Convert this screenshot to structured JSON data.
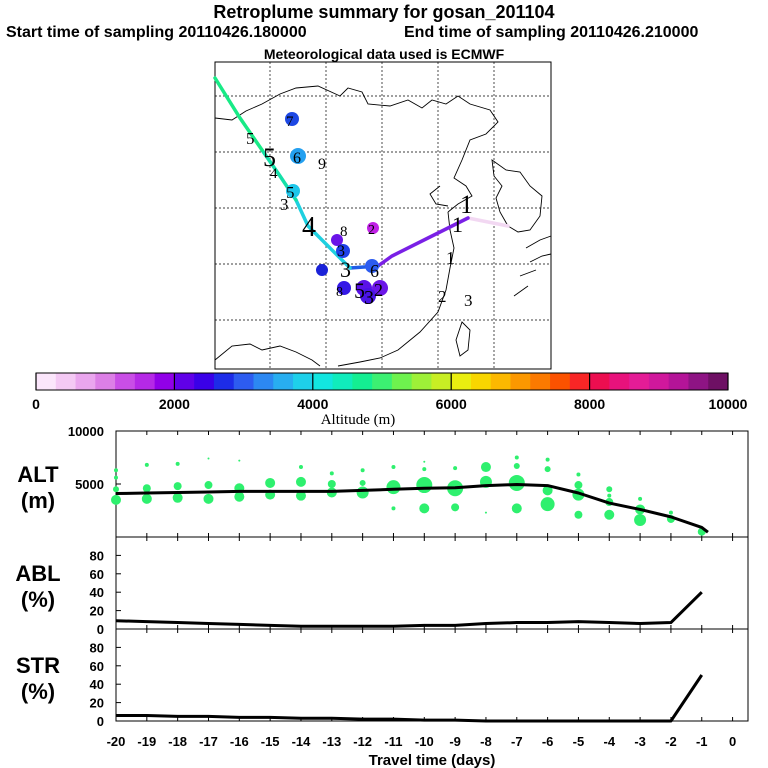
{
  "header": {
    "title": "Retroplume summary for gosan_201104",
    "start_label": "Start time of sampling 20110426.180000",
    "end_label": "End time of sampling 20110426.210000",
    "met_label": "Meteorological data used is ECMWF"
  },
  "colorbar": {
    "ticks": [
      "0",
      "2000",
      "4000",
      "6000",
      "8000",
      "10000"
    ],
    "label": "Altitude  (m)",
    "colors": [
      "#fbe6fb",
      "#f4c9f4",
      "#eaa6ee",
      "#dc7fe6",
      "#c94ee6",
      "#b529e6",
      "#9100e8",
      "#6000e8",
      "#3a00e8",
      "#1d2ce8",
      "#2d5cf0",
      "#2c88f2",
      "#28aef0",
      "#1ed0ea",
      "#12e6e0",
      "#10ecbc",
      "#14ee92",
      "#3cf072",
      "#6ef24e",
      "#9ef038",
      "#c8ee24",
      "#eaee10",
      "#f8d600",
      "#fcb800",
      "#fc9800",
      "#fc7a00",
      "#fc5200",
      "#f82626",
      "#ec0e50",
      "#e8127c",
      "#e41c96",
      "#d0189c",
      "#b41498",
      "#8e1484",
      "#6e1064"
    ]
  },
  "map": {
    "trajectory_colors": {
      "segment1": "#f2d8f2",
      "segment2": "#7a20e6",
      "segment3": "#1f5ce8",
      "segment4": "#1ed0e0",
      "segment5": "#14e0a8",
      "segment6": "#18ea86"
    },
    "labels": [
      "1",
      "1",
      "1",
      "2",
      "3",
      "2",
      "3",
      "4",
      "5",
      "6",
      "7",
      "8",
      "9",
      "3",
      "5",
      "5",
      "4",
      "3",
      "6",
      "2",
      "3",
      "5",
      "8"
    ]
  },
  "chart_data": [
    {
      "type": "line",
      "panel": "ALT",
      "ylabel_line1": "ALT",
      "ylabel_line2": "(m)",
      "ylim": [
        0,
        10000
      ],
      "yticks": [
        "10000",
        "5000"
      ],
      "xlabel": "Travel time (days)",
      "x": [
        -20,
        -19,
        -18,
        -17,
        -16,
        -15,
        -14,
        -13,
        -12,
        -11,
        -10,
        -9,
        -8,
        -7,
        -6,
        -5,
        -4,
        -3,
        -2,
        -1,
        -0.8
      ],
      "y": [
        4100,
        4150,
        4200,
        4250,
        4300,
        4300,
        4300,
        4300,
        4400,
        4500,
        4600,
        4650,
        4850,
        4950,
        4850,
        4150,
        3200,
        2600,
        1900,
        900,
        450
      ],
      "scatter": [
        {
          "x": -20,
          "y": 3500,
          "r": 5
        },
        {
          "x": -20,
          "y": 4500,
          "r": 3
        },
        {
          "x": -20,
          "y": 5600,
          "r": 2
        },
        {
          "x": -20,
          "y": 6300,
          "r": 2
        },
        {
          "x": -19,
          "y": 3600,
          "r": 5
        },
        {
          "x": -19,
          "y": 4600,
          "r": 4
        },
        {
          "x": -19,
          "y": 6800,
          "r": 2
        },
        {
          "x": -18,
          "y": 3700,
          "r": 5
        },
        {
          "x": -18,
          "y": 4800,
          "r": 4
        },
        {
          "x": -18,
          "y": 6900,
          "r": 2
        },
        {
          "x": -17,
          "y": 3600,
          "r": 5
        },
        {
          "x": -17,
          "y": 4900,
          "r": 4
        },
        {
          "x": -17,
          "y": 7400,
          "r": 1
        },
        {
          "x": -16,
          "y": 3800,
          "r": 5
        },
        {
          "x": -16,
          "y": 4600,
          "r": 5
        },
        {
          "x": -16,
          "y": 7200,
          "r": 1
        },
        {
          "x": -15,
          "y": 4000,
          "r": 5
        },
        {
          "x": -15,
          "y": 5100,
          "r": 5
        },
        {
          "x": -14,
          "y": 3900,
          "r": 5
        },
        {
          "x": -14,
          "y": 5200,
          "r": 5
        },
        {
          "x": -14,
          "y": 6600,
          "r": 2
        },
        {
          "x": -13,
          "y": 4200,
          "r": 5
        },
        {
          "x": -13,
          "y": 5000,
          "r": 4
        },
        {
          "x": -13,
          "y": 6000,
          "r": 2
        },
        {
          "x": -12,
          "y": 4200,
          "r": 6
        },
        {
          "x": -12,
          "y": 5100,
          "r": 3
        },
        {
          "x": -12,
          "y": 6300,
          "r": 2
        },
        {
          "x": -11,
          "y": 4700,
          "r": 7
        },
        {
          "x": -11,
          "y": 2700,
          "r": 2
        },
        {
          "x": -11,
          "y": 6600,
          "r": 2
        },
        {
          "x": -10,
          "y": 4900,
          "r": 8
        },
        {
          "x": -10,
          "y": 2700,
          "r": 5
        },
        {
          "x": -10,
          "y": 6400,
          "r": 2
        },
        {
          "x": -10,
          "y": 7100,
          "r": 1
        },
        {
          "x": -9,
          "y": 4600,
          "r": 8
        },
        {
          "x": -9,
          "y": 2800,
          "r": 4
        },
        {
          "x": -9,
          "y": 6500,
          "r": 2
        },
        {
          "x": -8,
          "y": 5200,
          "r": 6
        },
        {
          "x": -8,
          "y": 6600,
          "r": 5
        },
        {
          "x": -8,
          "y": 2300,
          "r": 1
        },
        {
          "x": -7,
          "y": 5100,
          "r": 8
        },
        {
          "x": -7,
          "y": 2700,
          "r": 5
        },
        {
          "x": -7,
          "y": 6700,
          "r": 3
        },
        {
          "x": -7,
          "y": 7500,
          "r": 2
        },
        {
          "x": -6,
          "y": 3100,
          "r": 7
        },
        {
          "x": -6,
          "y": 4400,
          "r": 5
        },
        {
          "x": -6,
          "y": 6400,
          "r": 3
        },
        {
          "x": -6,
          "y": 7300,
          "r": 2
        },
        {
          "x": -5,
          "y": 4000,
          "r": 6
        },
        {
          "x": -5,
          "y": 2100,
          "r": 4
        },
        {
          "x": -5,
          "y": 4900,
          "r": 4
        },
        {
          "x": -5,
          "y": 5900,
          "r": 2
        },
        {
          "x": -4,
          "y": 2100,
          "r": 5
        },
        {
          "x": -4,
          "y": 3300,
          "r": 4
        },
        {
          "x": -4,
          "y": 4500,
          "r": 3
        },
        {
          "x": -4,
          "y": 3900,
          "r": 2
        },
        {
          "x": -3,
          "y": 1600,
          "r": 6
        },
        {
          "x": -3,
          "y": 2600,
          "r": 5
        },
        {
          "x": -3,
          "y": 3600,
          "r": 2
        },
        {
          "x": -2,
          "y": 1700,
          "r": 4
        },
        {
          "x": -2,
          "y": 2300,
          "r": 2
        },
        {
          "x": -1,
          "y": 500,
          "r": 4
        }
      ]
    },
    {
      "type": "line",
      "panel": "ABL",
      "ylabel_line1": "ABL",
      "ylabel_line2": "(%)",
      "ylim": [
        0,
        100
      ],
      "yticks": [
        "80",
        "60",
        "40",
        "20",
        "0"
      ],
      "x": [
        -20,
        -19,
        -18,
        -17,
        -16,
        -15,
        -14,
        -13,
        -12,
        -11,
        -10,
        -9,
        -8,
        -7,
        -6,
        -5,
        -4,
        -3,
        -2,
        -1
      ],
      "y": [
        9,
        8,
        7,
        6,
        5,
        4,
        3,
        3,
        3,
        3,
        4,
        4,
        6,
        7,
        7,
        8,
        7,
        6,
        7,
        40
      ]
    },
    {
      "type": "line",
      "panel": "STR",
      "ylabel_line1": "STR",
      "ylabel_line2": "(%)",
      "ylim": [
        0,
        100
      ],
      "yticks": [
        "80",
        "60",
        "40",
        "20",
        "0"
      ],
      "xlabel": "Travel time (days)",
      "xticks": [
        "-20",
        "-19",
        "-18",
        "-17",
        "-16",
        "-15",
        "-14",
        "-13",
        "-12",
        "-11",
        "-10",
        "-9",
        "-8",
        "-7",
        "-6",
        "-5",
        "-4",
        "-3",
        "-2",
        "-1",
        "0"
      ],
      "x": [
        -20,
        -19,
        -18,
        -17,
        -16,
        -15,
        -14,
        -13,
        -12,
        -11,
        -10,
        -9,
        -8,
        -7,
        -6,
        -5,
        -4,
        -3,
        -2,
        -1
      ],
      "y": [
        6,
        6,
        5,
        5,
        4,
        4,
        3,
        3,
        2,
        2,
        1,
        1,
        0,
        0,
        0,
        0,
        0,
        0,
        0,
        50
      ]
    }
  ]
}
